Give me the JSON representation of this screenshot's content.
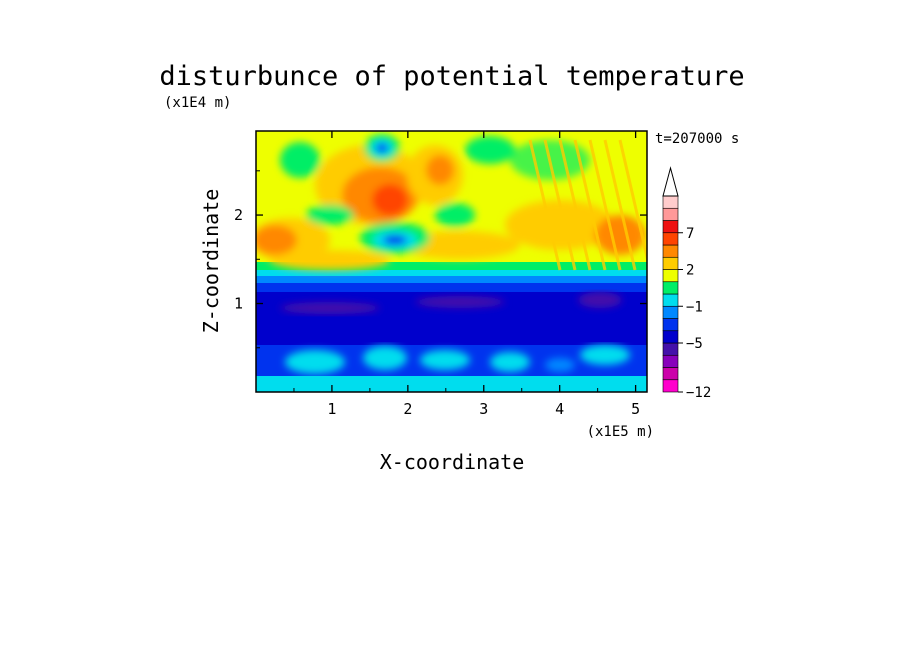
{
  "chart_data": {
    "type": "heatmap",
    "title": "disturbunce of potential temperature",
    "time_label": "t=207000 s",
    "xlabel": "X-coordinate",
    "ylabel": "Z-coordinate",
    "x_scale_label": "(x1E5 m)",
    "y_scale_label": "(x1E4 m)",
    "xlim": [
      0,
      5.15
    ],
    "ylim": [
      0,
      2.95
    ],
    "x_ticks": [
      1,
      2,
      3,
      4,
      5
    ],
    "x_tick_labels": [
      "1",
      "2",
      "3",
      "4",
      "5"
    ],
    "y_ticks": [
      1,
      2
    ],
    "y_tick_labels": [
      "1",
      "2"
    ],
    "colorbar": {
      "levels": [
        -12,
        -11,
        -9,
        -7,
        -5,
        -3,
        -2,
        -1,
        0,
        1,
        2,
        3,
        5,
        7,
        9
      ],
      "labels": [
        {
          "value": 7,
          "text": "7"
        },
        {
          "value": 2,
          "text": "2"
        },
        {
          "value": -1,
          "text": "−1"
        },
        {
          "value": -5,
          "text": "−5"
        },
        {
          "value": -12,
          "text": "−12"
        }
      ],
      "colors": [
        "#ff00cc",
        "#cc00aa",
        "#8800bb",
        "#4411aa",
        "#0000cc",
        "#0033ee",
        "#0088ff",
        "#00ddee",
        "#00ee66",
        "#eeff00",
        "#ffcc00",
        "#ff8800",
        "#ff4400",
        "#ee1111",
        "#ff9999",
        "#ffcccc"
      ],
      "extend_max": true
    },
    "regions": [
      {
        "name": "lower-boundary",
        "z": [
          0,
          0.15
        ],
        "value": 0
      },
      {
        "name": "lower-cyan",
        "z": [
          0.15,
          0.5
        ],
        "value": -1.5
      },
      {
        "name": "mid-blue",
        "z": [
          0.5,
          1.3
        ],
        "value": -4
      },
      {
        "name": "inner-purple",
        "z": [
          0.9,
          1.05
        ],
        "value": -7
      },
      {
        "name": "transition",
        "z": [
          1.3,
          1.45
        ],
        "value": -0.5
      },
      {
        "name": "upper-warm",
        "z": [
          1.45,
          2.95
        ],
        "value": 2.5
      }
    ]
  }
}
